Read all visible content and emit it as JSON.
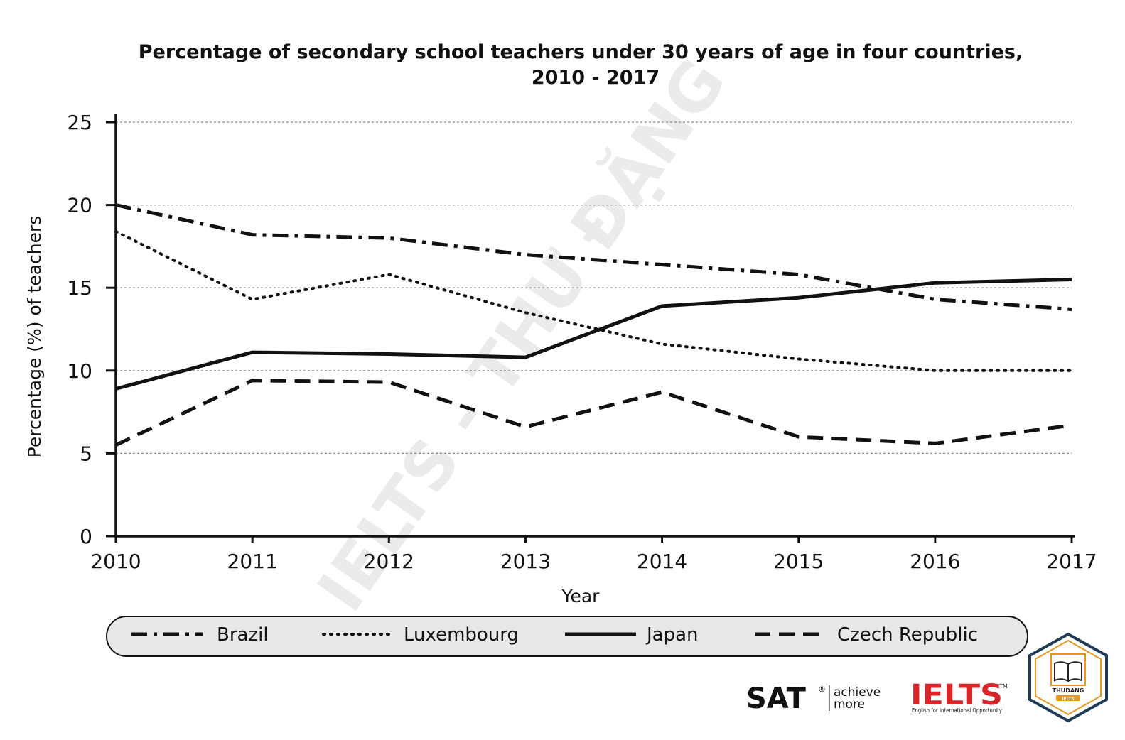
{
  "chart_data": {
    "type": "line",
    "title_line1": "Percentage of secondary school teachers under 30 years of age in four countries,",
    "title_line2": "2010 - 2017",
    "xlabel": "Year",
    "ylabel": "Percentage (%) of teachers",
    "x": [
      "2010",
      "2011",
      "2012",
      "2013",
      "2014",
      "2015",
      "2016",
      "2017"
    ],
    "yticks": [
      "0",
      "5",
      "10",
      "15",
      "20",
      "25"
    ],
    "ylim": [
      0,
      25
    ],
    "grid": "horizontal dotted",
    "legend_position": "bottom",
    "series": [
      {
        "name": "Brazil",
        "style": "dash-dot",
        "values": [
          20.0,
          18.2,
          18.0,
          17.0,
          16.4,
          15.8,
          14.3,
          13.7
        ]
      },
      {
        "name": "Luxembourg",
        "style": "dotted",
        "values": [
          18.4,
          14.3,
          15.8,
          13.5,
          11.6,
          10.7,
          10.0,
          10.0
        ]
      },
      {
        "name": "Japan",
        "style": "solid",
        "values": [
          8.9,
          11.1,
          11.0,
          10.8,
          13.9,
          14.4,
          15.3,
          15.5
        ]
      },
      {
        "name": "Czech Republic",
        "style": "dashed",
        "values": [
          5.5,
          9.4,
          9.3,
          6.6,
          8.7,
          6.0,
          5.6,
          6.7
        ]
      }
    ]
  },
  "watermark": "IELTS - THƯ ĐẶNG",
  "logos": {
    "sat": "SAT",
    "sat_reg": "®",
    "sat_tag1": "achieve",
    "sat_tag2": "more",
    "ielts": "IELTS",
    "ielts_tm": "TM",
    "ielts_sub": "English for International Opportunity",
    "badge_top": "THUDANG",
    "badge_bottom": "IELTS"
  },
  "colors": {
    "line": "#111111",
    "grid": "#888888",
    "legend_bg": "#e8e8e8",
    "ielts_red": "#d9262b",
    "badge_orange": "#e8961e"
  }
}
